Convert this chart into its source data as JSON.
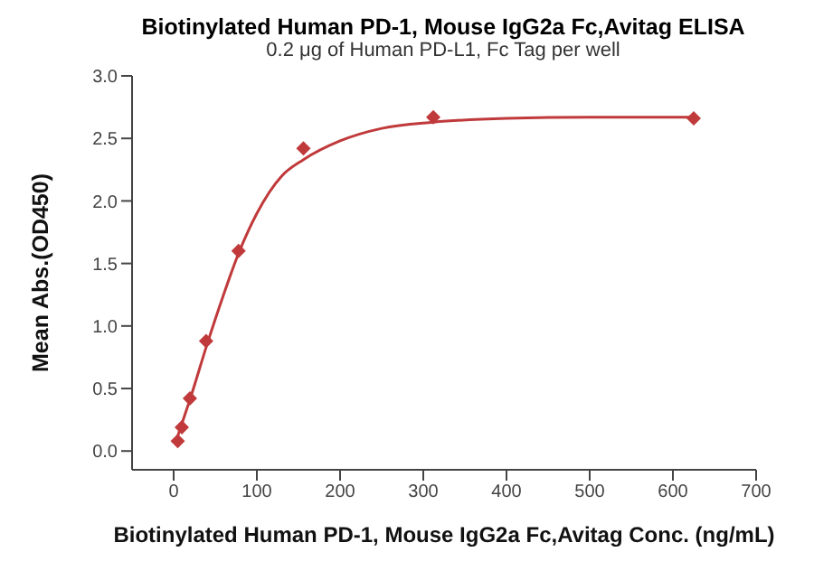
{
  "chart_data": {
    "type": "scatter",
    "title": "Biotinylated Human PD-1, Mouse IgG2a Fc,Avitag ELISA",
    "subtitle": "0.2 μg of Human PD-L1, Fc Tag per well",
    "xlabel": "Biotinylated Human PD-1, Mouse IgG2a Fc,Avitag Conc. (ng/mL)",
    "ylabel": "Mean Abs.(OD450)",
    "x": [
      4.9,
      9.8,
      19.5,
      39,
      78,
      156,
      312,
      625
    ],
    "series": [
      {
        "color": "#c0393b",
        "marker": "diamond",
        "values": [
          0.08,
          0.19,
          0.42,
          0.88,
          1.6,
          2.42,
          2.67,
          2.66
        ]
      },
      {
        "type": "line",
        "color": "#c0393b",
        "marker": "none",
        "line_style": "solid",
        "x": [
          4.9,
          10,
          20,
          40,
          60,
          78,
          100,
          130,
          156,
          200,
          250,
          312,
          400,
          500,
          625
        ],
        "values": [
          0.12,
          0.22,
          0.42,
          0.85,
          1.25,
          1.58,
          1.9,
          2.2,
          2.33,
          2.48,
          2.58,
          2.63,
          2.66,
          2.67,
          2.67
        ]
      }
    ],
    "xlim": [
      -50,
      700
    ],
    "xticks": [
      0,
      100,
      200,
      300,
      400,
      500,
      600,
      700
    ],
    "ylim": [
      -0.15,
      3.0
    ],
    "yticks": [
      {
        "value": 0,
        "label": "0.0"
      },
      0.5,
      {
        "value": 1,
        "label": "1.0"
      },
      1.5,
      {
        "value": 2,
        "label": "2.0"
      },
      2.5,
      {
        "value": 3,
        "label": "3.0"
      }
    ],
    "grid": false,
    "legend": false
  }
}
